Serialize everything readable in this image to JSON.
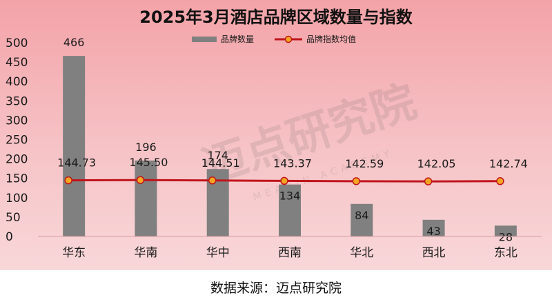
{
  "source_note": "数据来源：迈点研究院",
  "watermark": {
    "text": "迈点研究院",
    "subtext": "MEADIN ACADEMY"
  },
  "colors": {
    "bar": "#808080",
    "line": "#c0141b",
    "marker_fill": "#f5a623",
    "marker_stroke": "#c0141b"
  },
  "chart_data": {
    "type": "bar",
    "title": "2025年3月酒店品牌区域数量与指数",
    "categories": [
      "华东",
      "华南",
      "华中",
      "西南",
      "华北",
      "西北",
      "东北"
    ],
    "ylim": [
      0,
      500
    ],
    "yticks": [
      0,
      50,
      100,
      150,
      200,
      250,
      300,
      350,
      400,
      450,
      500
    ],
    "grid": false,
    "legend_position": "top-center",
    "series": [
      {
        "name": "品牌数量",
        "type": "bar",
        "values": [
          466,
          196,
          174,
          134,
          84,
          43,
          28
        ]
      },
      {
        "name": "品牌指数均值",
        "type": "line",
        "values": [
          144.73,
          145.5,
          144.51,
          143.37,
          142.59,
          142.05,
          142.74
        ],
        "labels": [
          "144.73",
          "145.50",
          "144.51",
          "143.37",
          "142.59",
          "142.05",
          "142.74"
        ]
      }
    ]
  }
}
